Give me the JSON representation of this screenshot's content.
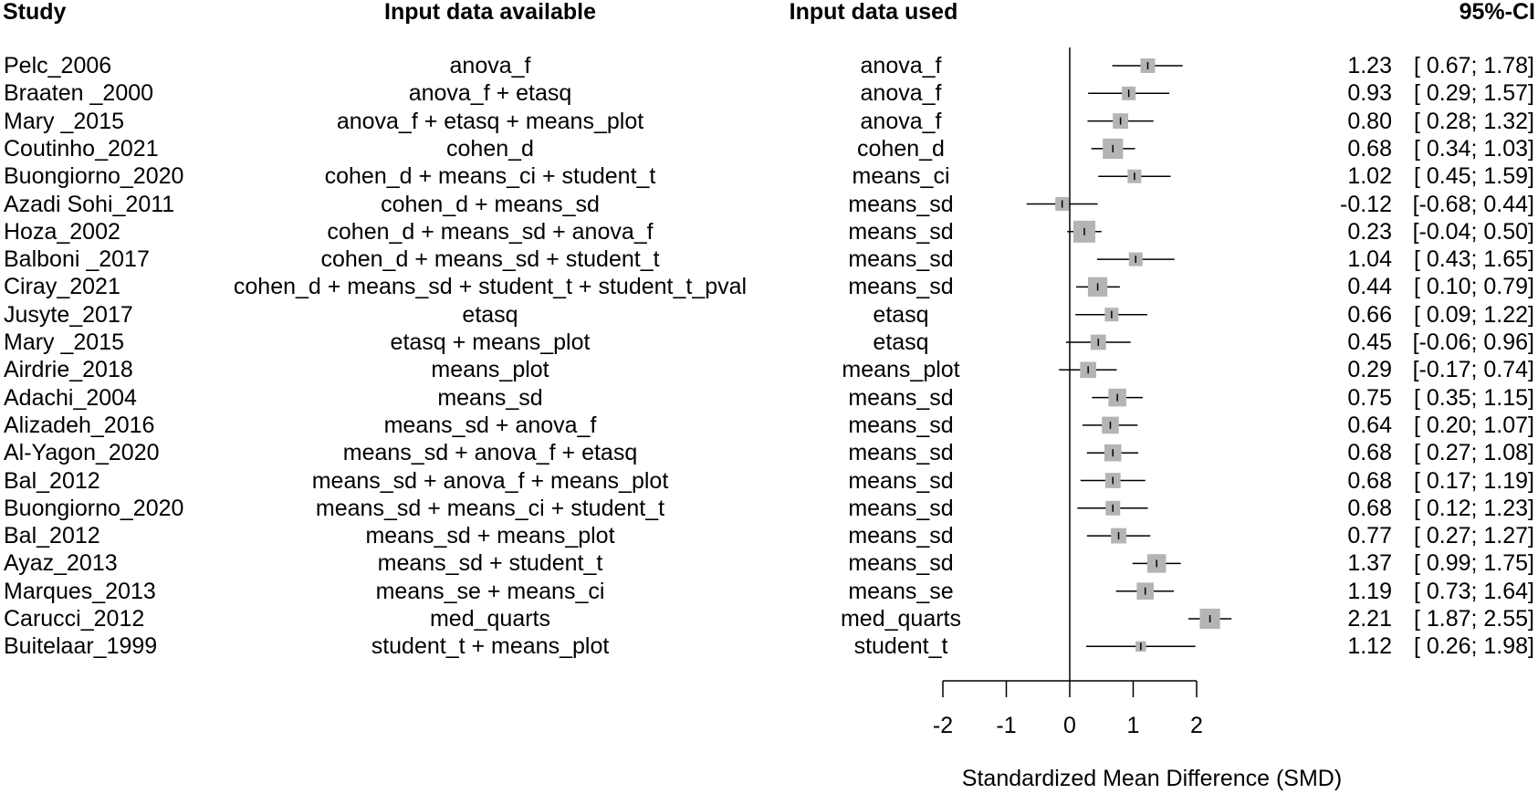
{
  "headers": {
    "study": "Study",
    "input_available": "Input data available",
    "input_used": "Input data used",
    "ci": "95%-CI"
  },
  "chart_data": {
    "type": "forest",
    "xlabel": "Standardized Mean Difference (SMD)",
    "xlim": [
      -2,
      2
    ],
    "xticks": [
      "-2",
      "-1",
      "0",
      "1",
      "2"
    ],
    "rows": [
      {
        "study": "Pelc_2006",
        "available": "anova_f",
        "used": "anova_f",
        "estimate": "1.23",
        "ci": "[ 0.67; 1.78]",
        "est": 1.23,
        "lo": 0.67,
        "hi": 1.78,
        "weight": 0.55
      },
      {
        "study": "Braaten _2000",
        "available": "anova_f + etasq",
        "used": "anova_f",
        "estimate": "0.93",
        "ci": "[ 0.29; 1.57]",
        "est": 0.93,
        "lo": 0.29,
        "hi": 1.57,
        "weight": 0.5
      },
      {
        "study": "Mary _2015",
        "available": "anova_f + etasq + means_plot",
        "used": "anova_f",
        "estimate": "0.80",
        "ci": "[ 0.28; 1.32]",
        "est": 0.8,
        "lo": 0.28,
        "hi": 1.32,
        "weight": 0.6
      },
      {
        "study": "Coutinho_2021",
        "available": "cohen_d",
        "used": "cohen_d",
        "estimate": "0.68",
        "ci": "[ 0.34; 1.03]",
        "est": 0.68,
        "lo": 0.34,
        "hi": 1.03,
        "weight": 0.9
      },
      {
        "study": "Buongiorno_2020",
        "available": "cohen_d + means_ci + student_t",
        "used": "means_ci",
        "estimate": "1.02",
        "ci": "[ 0.45; 1.59]",
        "est": 1.02,
        "lo": 0.45,
        "hi": 1.59,
        "weight": 0.5
      },
      {
        "study": "Azadi Sohi_2011",
        "available": "cohen_d + means_sd",
        "used": "means_sd",
        "estimate": "-0.12",
        "ci": "[-0.68; 0.44]",
        "est": -0.12,
        "lo": -0.68,
        "hi": 0.44,
        "weight": 0.5
      },
      {
        "study": "Hoza_2002",
        "available": "cohen_d + means_sd + anova_f",
        "used": "means_sd",
        "estimate": "0.23",
        "ci": "[-0.04; 0.50]",
        "est": 0.23,
        "lo": -0.04,
        "hi": 0.5,
        "weight": 1.0
      },
      {
        "study": "Balboni _2017",
        "available": "cohen_d + means_sd + student_t",
        "used": "means_sd",
        "estimate": "1.04",
        "ci": "[ 0.43; 1.65]",
        "est": 1.04,
        "lo": 0.43,
        "hi": 1.65,
        "weight": 0.5
      },
      {
        "study": "Ciray_2021",
        "available": "cohen_d + means_sd + student_t + student_t_pval",
        "used": "means_sd",
        "estimate": "0.44",
        "ci": "[ 0.10; 0.79]",
        "est": 0.44,
        "lo": 0.1,
        "hi": 0.79,
        "weight": 0.85
      },
      {
        "study": "Jusyte_2017",
        "available": "etasq",
        "used": "etasq",
        "estimate": "0.66",
        "ci": "[ 0.09; 1.22]",
        "est": 0.66,
        "lo": 0.09,
        "hi": 1.22,
        "weight": 0.5
      },
      {
        "study": "Mary _2015",
        "available": "etasq + means_plot",
        "used": "etasq",
        "estimate": "0.45",
        "ci": "[-0.06; 0.96]",
        "est": 0.45,
        "lo": -0.06,
        "hi": 0.96,
        "weight": 0.6
      },
      {
        "study": "Airdrie_2018",
        "available": "means_plot",
        "used": "means_plot",
        "estimate": "0.29",
        "ci": "[-0.17; 0.74]",
        "est": 0.29,
        "lo": -0.17,
        "hi": 0.74,
        "weight": 0.65
      },
      {
        "study": "Adachi_2004",
        "available": "means_sd",
        "used": "means_sd",
        "estimate": "0.75",
        "ci": "[ 0.35; 1.15]",
        "est": 0.75,
        "lo": 0.35,
        "hi": 1.15,
        "weight": 0.75
      },
      {
        "study": "Alizadeh_2016",
        "available": "means_sd + anova_f",
        "used": "means_sd",
        "estimate": "0.64",
        "ci": "[ 0.20; 1.07]",
        "est": 0.64,
        "lo": 0.2,
        "hi": 1.07,
        "weight": 0.7
      },
      {
        "study": "Al-Yagon_2020",
        "available": "means_sd + anova_f + etasq",
        "used": "means_sd",
        "estimate": "0.68",
        "ci": "[ 0.27; 1.08]",
        "est": 0.68,
        "lo": 0.27,
        "hi": 1.08,
        "weight": 0.7
      },
      {
        "study": "Bal_2012",
        "available": "means_sd + anova_f + means_plot",
        "used": "means_sd",
        "estimate": "0.68",
        "ci": "[ 0.17; 1.19]",
        "est": 0.68,
        "lo": 0.17,
        "hi": 1.19,
        "weight": 0.6
      },
      {
        "study": "Buongiorno_2020",
        "available": "means_sd + means_ci + student_t",
        "used": "means_sd",
        "estimate": "0.68",
        "ci": "[ 0.12; 1.23]",
        "est": 0.68,
        "lo": 0.12,
        "hi": 1.23,
        "weight": 0.55
      },
      {
        "study": "Bal_2012",
        "available": "means_sd + means_plot",
        "used": "means_sd",
        "estimate": "0.77",
        "ci": "[ 0.27; 1.27]",
        "est": 0.77,
        "lo": 0.27,
        "hi": 1.27,
        "weight": 0.6
      },
      {
        "study": "Ayaz_2013",
        "available": "means_sd + student_t",
        "used": "means_sd",
        "estimate": "1.37",
        "ci": "[ 0.99; 1.75]",
        "est": 1.37,
        "lo": 0.99,
        "hi": 1.75,
        "weight": 0.8
      },
      {
        "study": "Marques_2013",
        "available": "means_se + means_ci",
        "used": "means_se",
        "estimate": "1.19",
        "ci": "[ 0.73; 1.64]",
        "est": 1.19,
        "lo": 0.73,
        "hi": 1.64,
        "weight": 0.7
      },
      {
        "study": "Carucci_2012",
        "available": "med_quarts",
        "used": "med_quarts",
        "estimate": "2.21",
        "ci": "[ 1.87; 2.55]",
        "est": 2.21,
        "lo": 1.87,
        "hi": 2.55,
        "weight": 0.9
      },
      {
        "study": "Buitelaar_1999",
        "available": "student_t + means_plot",
        "used": "student_t",
        "estimate": "1.12",
        "ci": "[ 0.26; 1.98]",
        "est": 1.12,
        "lo": 0.26,
        "hi": 1.98,
        "weight": 0.3
      }
    ]
  }
}
